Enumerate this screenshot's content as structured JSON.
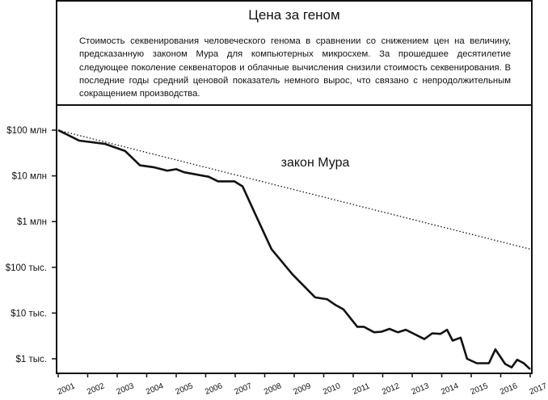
{
  "chart_data": {
    "type": "line",
    "log_y": true,
    "title": "Цена за геном",
    "description": "Стоимость секвенирования человеческого генома в сравнении со снижением цен на величину, предсказанную законом Мура для компьютерных микросхем. За прошедшее десятилетие следующее поколение секвенаторов и облачные вычисления снизили стоимость секвенирования. В последние годы средний ценовой показатель немного вырос, что связано с непродолжительным сокращением производства.",
    "xlim": [
      2001,
      2017
    ],
    "xticks": [
      2001,
      2002,
      2003,
      2004,
      2005,
      2006,
      2007,
      2008,
      2009,
      2010,
      2011,
      2012,
      2013,
      2014,
      2015,
      2016,
      2017
    ],
    "ylim": [
      500,
      340000000
    ],
    "yticks": [
      {
        "value": 1000,
        "label": "$1 тыс."
      },
      {
        "value": 10000,
        "label": "$10 тыс."
      },
      {
        "value": 100000,
        "label": "$100 тыс."
      },
      {
        "value": 1000000,
        "label": "$1 млн"
      },
      {
        "value": 10000000,
        "label": "$10 млн"
      },
      {
        "value": 100000000,
        "label": "$100 млн"
      }
    ],
    "series": [
      {
        "color": "#111111",
        "style": "solid",
        "x": [
          2001.0,
          2001.71,
          2002.59,
          2003.27,
          2003.77,
          2004.23,
          2004.7,
          2005.0,
          2005.27,
          2006.1,
          2006.42,
          2006.97,
          2007.25,
          2007.74,
          2008.23,
          2008.95,
          2009.71,
          2010.12,
          2010.4,
          2010.67,
          2011.14,
          2011.36,
          2011.71,
          2011.96,
          2012.23,
          2012.51,
          2012.78,
          2013.41,
          2013.68,
          2013.96,
          2014.18,
          2014.37,
          2014.64,
          2014.86,
          2015.19,
          2015.6,
          2015.82,
          2016.15,
          2016.37,
          2016.56,
          2016.78,
          2017.0
        ],
        "values": [
          100000000,
          59000000,
          50000000,
          35000000,
          17000000,
          15500000,
          13000000,
          14000000,
          12000000,
          9600000,
          7600000,
          7600000,
          5900000,
          1200000,
          250000,
          69000,
          22000,
          20000,
          15000,
          12000,
          5000,
          5000,
          3800,
          3900,
          4500,
          3800,
          4300,
          2700,
          3600,
          3500,
          4300,
          2500,
          2900,
          1000,
          800,
          800,
          1600,
          770,
          650,
          950,
          800,
          590
        ]
      },
      {
        "name": "закон Мура",
        "color": "#111111",
        "style": "dotted",
        "x": [
          2001.0,
          2017.0
        ],
        "values": [
          100000000,
          250000
        ]
      }
    ]
  }
}
